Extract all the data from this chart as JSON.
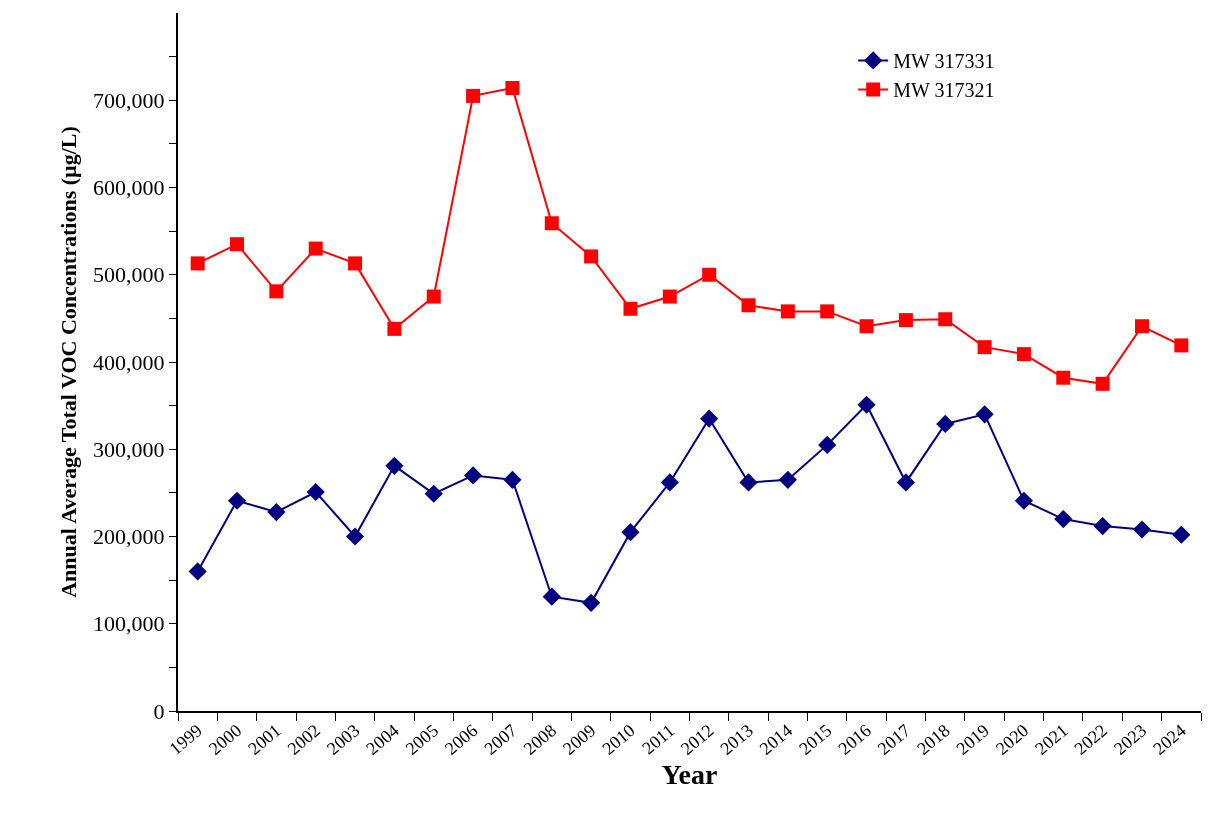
{
  "chart_data": {
    "type": "line",
    "xlabel": "Year",
    "ylabel": "Annual Average Total VOC Concentrations (µg/L)",
    "categories": [
      "1999",
      "2000",
      "2001",
      "2002",
      "2003",
      "2004",
      "2005",
      "2006",
      "2007",
      "2008",
      "2009",
      "2010",
      "2011",
      "2012",
      "2013",
      "2014",
      "2015",
      "2016",
      "2017",
      "2018",
      "2019",
      "2020",
      "2021",
      "2022",
      "2023",
      "2024"
    ],
    "series": [
      {
        "name": "MW 317331",
        "color": "#000080",
        "marker": "diamond",
        "values": [
          160000,
          241000,
          228000,
          251000,
          200000,
          281000,
          249000,
          270000,
          265000,
          131000,
          124000,
          205000,
          262000,
          335000,
          262000,
          265000,
          305000,
          351000,
          262000,
          329000,
          340000,
          241000,
          220000,
          212000,
          208000,
          202000
        ]
      },
      {
        "name": "MW 317321",
        "color": "#ff0000",
        "marker": "square",
        "values": [
          513000,
          535000,
          481000,
          530000,
          513000,
          438000,
          475000,
          705000,
          714000,
          559000,
          521000,
          461000,
          475000,
          500000,
          465000,
          458000,
          458000,
          441000,
          448000,
          449000,
          417000,
          409000,
          382000,
          375000,
          441000,
          419000
        ]
      }
    ],
    "ylim": [
      0,
      800000
    ],
    "yticks": [
      0,
      {
        "value": 50000,
        "label": null
      },
      {
        "value": 100000,
        "label": "100,000"
      },
      {
        "value": 150000,
        "label": null
      },
      {
        "value": 200000,
        "label": "200,000"
      },
      {
        "value": 250000,
        "label": null
      },
      {
        "value": 300000,
        "label": "300,000"
      },
      {
        "value": 350000,
        "label": null
      },
      {
        "value": 400000,
        "label": "400,000"
      },
      {
        "value": 450000,
        "label": null
      },
      {
        "value": 500000,
        "label": "500,000"
      },
      {
        "value": 550000,
        "label": null
      },
      {
        "value": 600000,
        "label": "600,000"
      },
      {
        "value": 650000,
        "label": null
      },
      {
        "value": 700000,
        "label": "700,000"
      },
      {
        "value": 750000,
        "label": null
      }
    ],
    "grid": false,
    "legend": "top right",
    "line_style": "solid"
  }
}
